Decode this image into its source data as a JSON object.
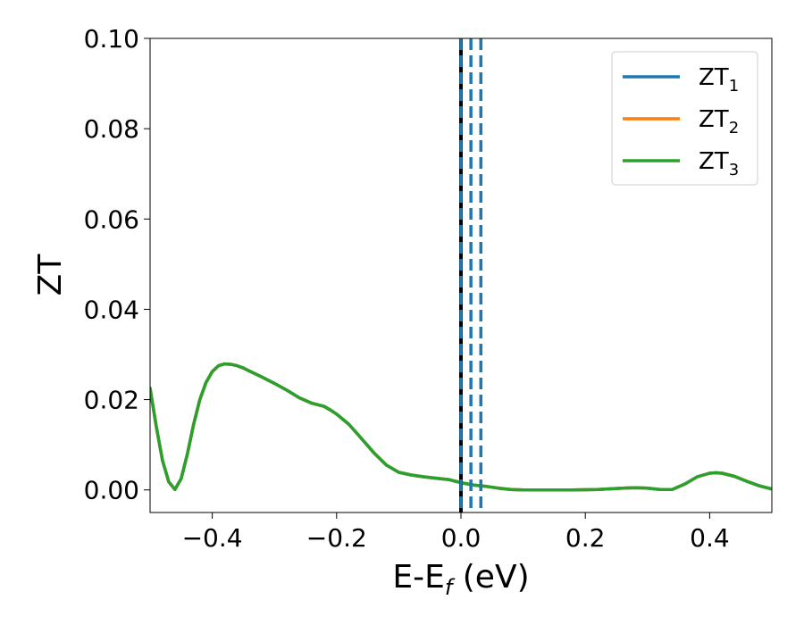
{
  "chart_data": {
    "type": "line",
    "xlabel": {
      "main": "E-E",
      "sub": "f",
      "suffix": " (eV)"
    },
    "ylabel": "ZT",
    "xlim": [
      -0.5,
      0.5
    ],
    "ylim": [
      -0.005,
      0.1
    ],
    "xticks": [
      -0.4,
      -0.2,
      0.0,
      0.2,
      0.4
    ],
    "xtick_labels": [
      "−0.4",
      "−0.2",
      "0.0",
      "0.2",
      "0.4"
    ],
    "yticks": [
      0.0,
      0.02,
      0.04,
      0.06,
      0.08,
      0.1
    ],
    "ytick_labels": [
      "0.00",
      "0.02",
      "0.04",
      "0.06",
      "0.08",
      "0.10"
    ],
    "grid": false,
    "legend_position": "top-right",
    "x": [
      -0.5,
      -0.49,
      -0.48,
      -0.47,
      -0.46,
      -0.45,
      -0.44,
      -0.43,
      -0.42,
      -0.41,
      -0.4,
      -0.39,
      -0.38,
      -0.37,
      -0.36,
      -0.35,
      -0.34,
      -0.32,
      -0.3,
      -0.28,
      -0.26,
      -0.24,
      -0.22,
      -0.21,
      -0.2,
      -0.18,
      -0.16,
      -0.14,
      -0.12,
      -0.1,
      -0.08,
      -0.06,
      -0.04,
      -0.02,
      0.0,
      0.02,
      0.04,
      0.06,
      0.08,
      0.1,
      0.14,
      0.18,
      0.22,
      0.26,
      0.28,
      0.3,
      0.32,
      0.34,
      0.36,
      0.38,
      0.4,
      0.41,
      0.42,
      0.44,
      0.46,
      0.48,
      0.5
    ],
    "series": [
      {
        "name": "ZT",
        "sub": "1",
        "color": "#1f77b4",
        "values": [
          0.0225,
          0.014,
          0.0065,
          0.0018,
          0.0001,
          0.0025,
          0.008,
          0.0145,
          0.02,
          0.0238,
          0.0262,
          0.0275,
          0.0279,
          0.0278,
          0.0275,
          0.027,
          0.0263,
          0.025,
          0.0236,
          0.0221,
          0.0204,
          0.0192,
          0.0185,
          0.0177,
          0.0168,
          0.0145,
          0.0114,
          0.0082,
          0.0055,
          0.0039,
          0.0033,
          0.0029,
          0.0026,
          0.0023,
          0.0016,
          0.0011,
          0.0008,
          0.0004,
          0.0001,
          0.0,
          0.0,
          0.0,
          0.0001,
          0.0004,
          0.0005,
          0.0004,
          0.0001,
          0.0001,
          0.0013,
          0.0029,
          0.0037,
          0.0038,
          0.0037,
          0.003,
          0.0019,
          0.0009,
          0.0002
        ]
      },
      {
        "name": "ZT",
        "sub": "2",
        "color": "#ff7f0e",
        "values": [
          0.0225,
          0.014,
          0.0065,
          0.0018,
          0.0001,
          0.0025,
          0.008,
          0.0145,
          0.02,
          0.0238,
          0.0262,
          0.0275,
          0.0279,
          0.0278,
          0.0275,
          0.027,
          0.0263,
          0.025,
          0.0236,
          0.0221,
          0.0204,
          0.0192,
          0.0185,
          0.0177,
          0.0168,
          0.0145,
          0.0114,
          0.0082,
          0.0055,
          0.0039,
          0.0033,
          0.0029,
          0.0026,
          0.0023,
          0.0016,
          0.0011,
          0.0008,
          0.0004,
          0.0001,
          0.0,
          0.0,
          0.0,
          0.0001,
          0.0004,
          0.0005,
          0.0004,
          0.0001,
          0.0001,
          0.0013,
          0.0029,
          0.0037,
          0.0038,
          0.0037,
          0.003,
          0.0019,
          0.0009,
          0.0002
        ]
      },
      {
        "name": "ZT",
        "sub": "3",
        "color": "#2ca02c",
        "values": [
          0.0225,
          0.014,
          0.0065,
          0.0018,
          0.0001,
          0.0025,
          0.008,
          0.0145,
          0.02,
          0.0238,
          0.0262,
          0.0275,
          0.0279,
          0.0278,
          0.0275,
          0.027,
          0.0263,
          0.025,
          0.0236,
          0.0221,
          0.0204,
          0.0192,
          0.0185,
          0.0177,
          0.0168,
          0.0145,
          0.0114,
          0.0082,
          0.0055,
          0.0039,
          0.0033,
          0.0029,
          0.0026,
          0.0023,
          0.0016,
          0.0011,
          0.0008,
          0.0004,
          0.0001,
          0.0,
          0.0,
          0.0,
          0.0001,
          0.0004,
          0.0005,
          0.0004,
          0.0001,
          0.0001,
          0.0013,
          0.0029,
          0.0037,
          0.0038,
          0.0037,
          0.003,
          0.0019,
          0.0009,
          0.0002
        ]
      }
    ],
    "vlines": [
      {
        "x": 0.0,
        "style": "solid",
        "color": "#000000"
      },
      {
        "x": 0.0,
        "style": "dashed",
        "color": "#1f77b4"
      },
      {
        "x": 0.016,
        "style": "dashed",
        "color": "#1f77b4"
      },
      {
        "x": 0.032,
        "style": "dashed",
        "color": "#1f77b4"
      }
    ]
  }
}
